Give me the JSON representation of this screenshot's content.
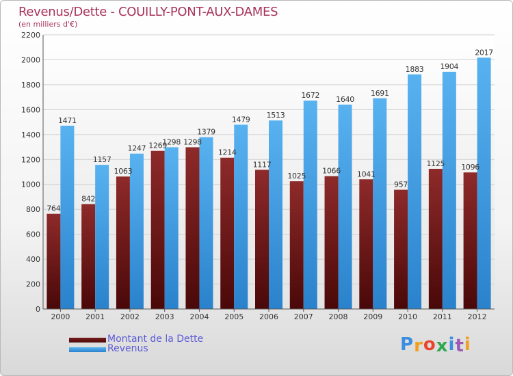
{
  "header": {
    "title": "Revenus/Dette - COUILLY-PONT-AUX-DAMES",
    "subtitle": "(en milliers d'€)"
  },
  "chart_data": {
    "type": "bar",
    "title": "Revenus/Dette - COUILLY-PONT-AUX-DAMES",
    "subtitle": "(en milliers d'€)",
    "xlabel": "",
    "ylabel": "",
    "categories": [
      "2000",
      "2001",
      "2002",
      "2003",
      "2004",
      "2005",
      "2006",
      "2007",
      "2008",
      "2009",
      "2010",
      "2011",
      "2012"
    ],
    "series": [
      {
        "name": "Montant de la Dette",
        "color": "#7a1c1c",
        "values": [
          764,
          842,
          1063,
          1269,
          1298,
          1214,
          1117,
          1025,
          1066,
          1041,
          957,
          1125,
          1096
        ],
        "labels": [
          "764",
          "842",
          "1063",
          "1269",
          "1298",
          "1214",
          "1117",
          "1025",
          "1066",
          "1041",
          "957",
          "1125",
          "1096"
        ]
      },
      {
        "name": "Revenus",
        "color": "#4aa8ea",
        "values": [
          1471,
          1157,
          1247,
          1298,
          1379,
          1479,
          1513,
          1672,
          1640,
          1691,
          1883,
          1904,
          2017
        ],
        "labels": [
          "1471",
          "1157",
          "1247",
          "1298",
          "1379",
          "1479",
          "1513",
          "1672",
          "1640",
          "1691",
          "1883",
          "1904",
          "2017"
        ]
      }
    ],
    "ylim": [
      0,
      2200
    ],
    "yticks": [
      0,
      200,
      400,
      600,
      800,
      1000,
      1200,
      1400,
      1600,
      1800,
      2000,
      2200
    ],
    "ytick_labels": [
      "0",
      "200",
      "400",
      "600",
      "800",
      "1000",
      "1200",
      "1400",
      "1600",
      "1800",
      "2000",
      "2200"
    ],
    "grid": true,
    "legend_position": "bottom-left"
  },
  "legend": {
    "debt_label": "Montant de la Dette",
    "revenue_label": "Revenus"
  },
  "logo": {
    "letters": [
      "P",
      "r",
      "o",
      "x",
      "i",
      "t",
      "i"
    ],
    "colors": [
      "#3b8ede",
      "#f0a020",
      "#e8452c",
      "#2fa84f",
      "#3b8ede",
      "#9b59b6",
      "#f0a020"
    ]
  }
}
